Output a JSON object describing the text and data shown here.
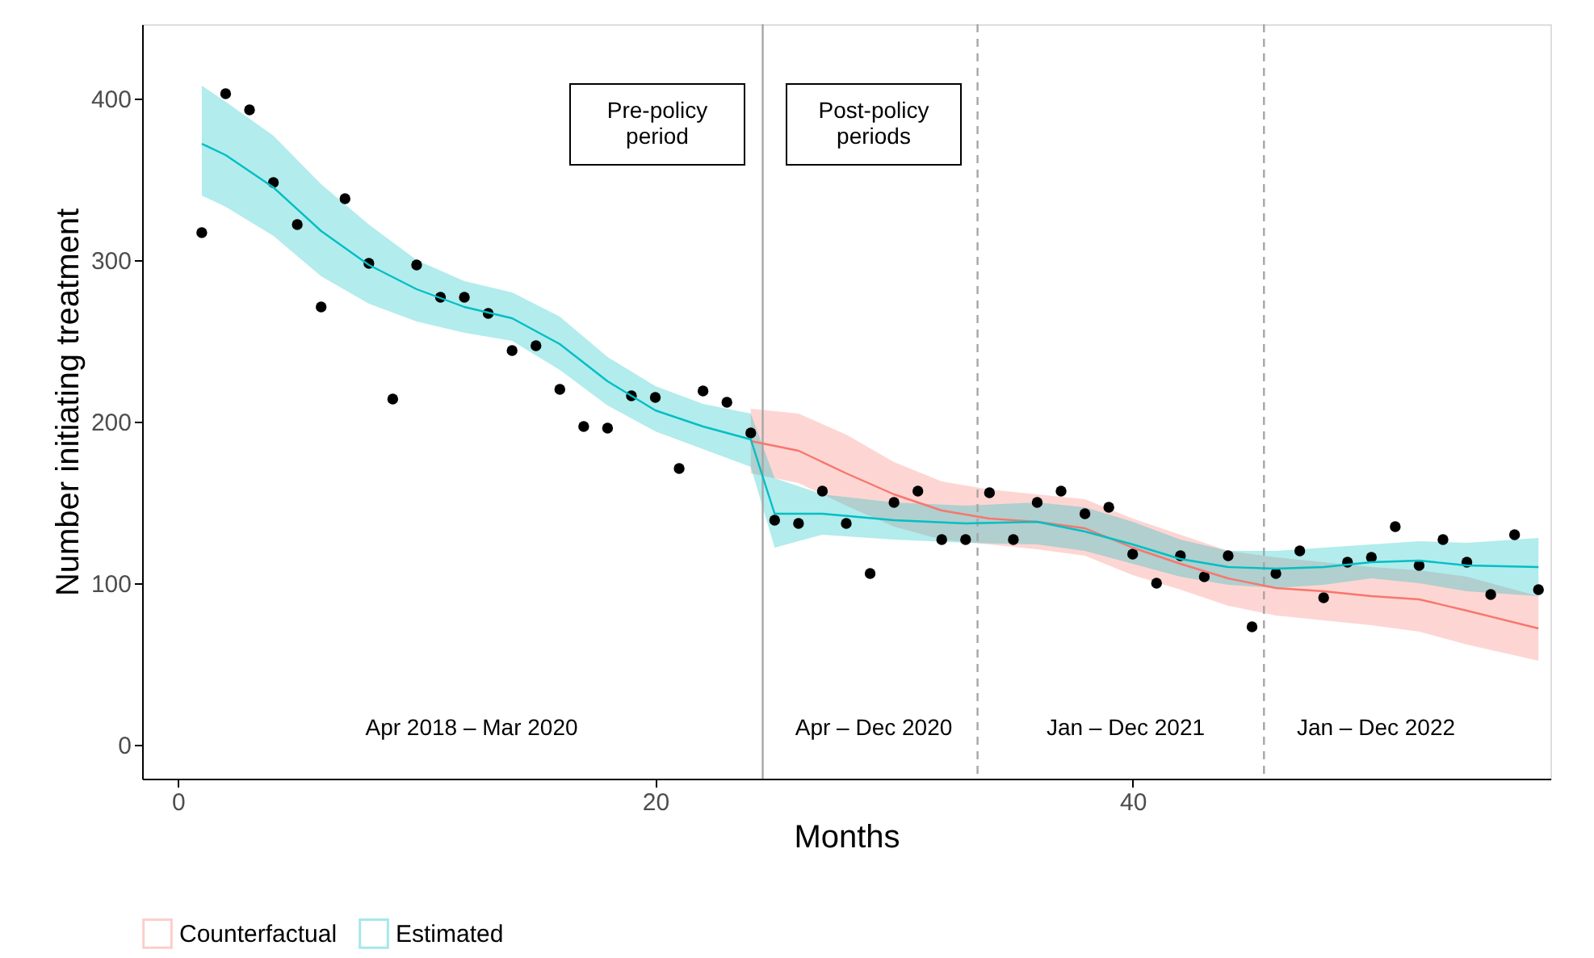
{
  "chart_data": {
    "type": "scatter",
    "xlabel": "Months",
    "ylabel": "Number initiating treatment",
    "x": [
      1,
      2,
      3,
      4,
      5,
      6,
      7,
      8,
      9,
      10,
      11,
      12,
      13,
      14,
      15,
      16,
      17,
      18,
      19,
      20,
      21,
      22,
      23,
      24,
      25,
      26,
      27,
      28,
      29,
      30,
      31,
      32,
      33,
      34,
      35,
      36,
      37,
      38,
      39,
      40,
      41,
      42,
      43,
      44,
      45,
      46,
      47,
      48,
      49,
      50,
      51,
      52,
      53,
      54,
      55,
      56,
      57
    ],
    "xlim": [
      -1.5,
      57.5
    ],
    "xticks": [
      0,
      20,
      40
    ],
    "ylim": [
      -21,
      446
    ],
    "yticks": [
      0,
      100,
      200,
      300,
      400
    ],
    "grid": false,
    "legend": "bottom",
    "series": [
      {
        "marker": "circle",
        "color": "#000000",
        "values": [
          317,
          403,
          393,
          348,
          322,
          271,
          338,
          298,
          214,
          297,
          277,
          277,
          267,
          244,
          247,
          220,
          197,
          196,
          216,
          215,
          171,
          219,
          212,
          193,
          139,
          137,
          157,
          137,
          106,
          150,
          157,
          127,
          127,
          156,
          127,
          150,
          157,
          143,
          147,
          118,
          100,
          117,
          104,
          117,
          73,
          106,
          120,
          91,
          113,
          116,
          135,
          111,
          127,
          113,
          93,
          130,
          96
        ]
      },
      {
        "type": "line",
        "name": "Counterfactual",
        "color": "#f8766d",
        "x": [
          24,
          26,
          28,
          30,
          32,
          34,
          36,
          38,
          40,
          42,
          44,
          46,
          48,
          50,
          52,
          54,
          57
        ],
        "values": [
          188,
          182,
          168,
          155,
          145,
          140,
          138,
          134,
          122,
          112,
          103,
          97,
          95,
          92,
          90,
          83,
          72
        ],
        "lower": [
          168,
          162,
          148,
          135,
          127,
          124,
          121,
          117,
          105,
          96,
          86,
          80,
          77,
          74,
          70,
          62,
          52
        ],
        "upper": [
          208,
          205,
          192,
          175,
          163,
          158,
          155,
          152,
          140,
          130,
          120,
          116,
          113,
          110,
          108,
          104,
          92
        ]
      },
      {
        "type": "line",
        "name": "Estimated",
        "color": "#00bfc4",
        "x": [
          1,
          2,
          4,
          6,
          8,
          10,
          12,
          14,
          16,
          18,
          20,
          22,
          24,
          25,
          27,
          30,
          33,
          36,
          38,
          40,
          42,
          44,
          46,
          48,
          50,
          52,
          54,
          57
        ],
        "values": [
          372,
          365,
          345,
          318,
          297,
          282,
          271,
          264,
          248,
          225,
          207,
          197,
          189,
          143,
          143,
          139,
          137,
          138,
          132,
          124,
          115,
          110,
          109,
          110,
          113,
          114,
          111,
          110
        ],
        "lower": [
          340,
          333,
          315,
          290,
          273,
          262,
          255,
          250,
          232,
          210,
          194,
          183,
          172,
          122,
          130,
          127,
          125,
          124,
          120,
          112,
          104,
          99,
          97,
          99,
          103,
          100,
          95,
          92
        ],
        "upper": [
          408,
          398,
          377,
          347,
          322,
          300,
          287,
          280,
          265,
          240,
          222,
          211,
          205,
          165,
          155,
          150,
          148,
          150,
          147,
          138,
          127,
          120,
          120,
          122,
          124,
          126,
          125,
          128
        ]
      }
    ],
    "ref_lines": [
      {
        "axis": "x",
        "value": 24.5,
        "color": "#a6a6a6",
        "line_style": "solid"
      },
      {
        "axis": "x",
        "value": 33.5,
        "color": "#a6a6a6",
        "line_style": "dashed"
      },
      {
        "axis": "x",
        "value": 45.5,
        "color": "#a6a6a6",
        "line_style": "dashed"
      }
    ],
    "annotations": [
      "Pre-policy\nperiod",
      "Post-policy\nperiods",
      "Apr 2018 – Mar 2020",
      "Apr – Dec 2020",
      "Jan – Dec 2021",
      "Jan – Dec 2022"
    ]
  }
}
